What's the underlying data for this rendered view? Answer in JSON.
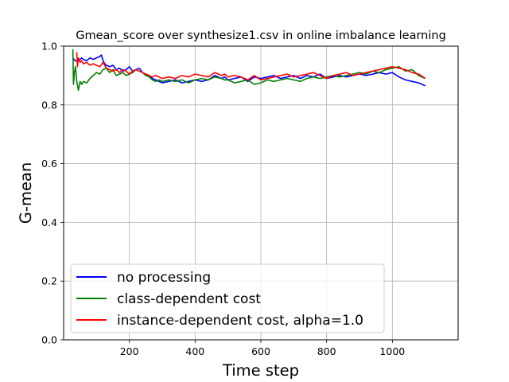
{
  "chart_data": {
    "type": "line",
    "title": "Gmean_score over synthesize1.csv in online imbalance learning",
    "xlabel": "Time step",
    "ylabel": "G-mean",
    "xlim": [
      0,
      1200
    ],
    "ylim": [
      0.0,
      1.0
    ],
    "xticks": [
      200,
      400,
      600,
      800,
      1000
    ],
    "xtick_labels": [
      "200",
      "400",
      "600",
      "800",
      "1000"
    ],
    "yticks": [
      0.0,
      0.2,
      0.4,
      0.6,
      0.8,
      1.0
    ],
    "ytick_labels": [
      "0.0",
      "0.2",
      "0.4",
      "0.6",
      "0.8",
      "1.0"
    ],
    "grid": true,
    "legend_position": "lower-left",
    "series": [
      {
        "name": "no processing",
        "color": "#0000ff",
        "x": [
          28,
          35,
          45,
          55,
          60,
          70,
          80,
          90,
          100,
          110,
          115,
          120,
          125,
          130,
          140,
          150,
          160,
          170,
          180,
          190,
          200,
          210,
          220,
          230,
          240,
          250,
          260,
          270,
          280,
          290,
          300,
          320,
          340,
          360,
          380,
          400,
          420,
          440,
          460,
          480,
          490,
          500,
          520,
          540,
          560,
          580,
          600,
          620,
          640,
          660,
          680,
          700,
          720,
          740,
          760,
          780,
          800,
          820,
          840,
          860,
          880,
          900,
          920,
          940,
          960,
          980,
          1000,
          1020,
          1040,
          1060,
          1080,
          1100
        ],
        "y": [
          0.96,
          0.95,
          0.95,
          0.96,
          0.955,
          0.95,
          0.96,
          0.955,
          0.96,
          0.965,
          0.97,
          0.95,
          0.94,
          0.935,
          0.93,
          0.935,
          0.92,
          0.925,
          0.915,
          0.92,
          0.93,
          0.915,
          0.92,
          0.925,
          0.91,
          0.905,
          0.9,
          0.89,
          0.885,
          0.88,
          0.875,
          0.88,
          0.885,
          0.875,
          0.88,
          0.885,
          0.88,
          0.885,
          0.9,
          0.89,
          0.895,
          0.885,
          0.89,
          0.895,
          0.88,
          0.895,
          0.89,
          0.895,
          0.9,
          0.89,
          0.895,
          0.9,
          0.89,
          0.9,
          0.895,
          0.905,
          0.89,
          0.895,
          0.9,
          0.895,
          0.9,
          0.905,
          0.9,
          0.905,
          0.91,
          0.905,
          0.91,
          0.895,
          0.885,
          0.88,
          0.875,
          0.865
        ]
      },
      {
        "name": "class-dependent cost",
        "color": "#008000",
        "x": [
          28,
          30,
          33,
          36,
          40,
          45,
          50,
          55,
          60,
          70,
          80,
          90,
          100,
          110,
          120,
          130,
          140,
          150,
          160,
          170,
          180,
          190,
          200,
          210,
          220,
          230,
          240,
          250,
          260,
          270,
          280,
          290,
          300,
          320,
          340,
          360,
          380,
          400,
          420,
          440,
          460,
          480,
          490,
          500,
          520,
          540,
          560,
          580,
          600,
          620,
          640,
          660,
          680,
          700,
          720,
          740,
          760,
          780,
          800,
          820,
          840,
          860,
          880,
          900,
          920,
          940,
          960,
          980,
          1000,
          1020,
          1040,
          1060,
          1080,
          1100
        ],
        "y": [
          0.99,
          0.87,
          0.91,
          0.93,
          0.88,
          0.85,
          0.88,
          0.87,
          0.88,
          0.875,
          0.89,
          0.9,
          0.91,
          0.905,
          0.92,
          0.925,
          0.91,
          0.92,
          0.9,
          0.905,
          0.91,
          0.9,
          0.905,
          0.91,
          0.92,
          0.915,
          0.91,
          0.9,
          0.895,
          0.885,
          0.88,
          0.885,
          0.88,
          0.885,
          0.88,
          0.885,
          0.875,
          0.885,
          0.89,
          0.885,
          0.895,
          0.89,
          0.885,
          0.885,
          0.875,
          0.88,
          0.885,
          0.87,
          0.875,
          0.885,
          0.88,
          0.885,
          0.89,
          0.885,
          0.88,
          0.89,
          0.895,
          0.89,
          0.895,
          0.9,
          0.895,
          0.9,
          0.905,
          0.91,
          0.905,
          0.915,
          0.91,
          0.92,
          0.925,
          0.93,
          0.915,
          0.92,
          0.9,
          0.89
        ]
      },
      {
        "name": "instance-dependent cost, alpha=1.0",
        "color": "#ff0000",
        "x": [
          40,
          42,
          45,
          50,
          55,
          60,
          70,
          80,
          90,
          100,
          110,
          120,
          130,
          140,
          150,
          160,
          170,
          180,
          190,
          200,
          210,
          220,
          230,
          240,
          250,
          260,
          270,
          280,
          290,
          300,
          320,
          340,
          360,
          380,
          400,
          420,
          440,
          460,
          480,
          490,
          500,
          520,
          540,
          560,
          580,
          600,
          620,
          640,
          660,
          680,
          700,
          720,
          740,
          760,
          780,
          800,
          820,
          840,
          860,
          880,
          900,
          920,
          940,
          960,
          980,
          1000,
          1020,
          1040,
          1060,
          1080,
          1100
        ],
        "y": [
          0.98,
          0.93,
          0.96,
          0.945,
          0.95,
          0.94,
          0.945,
          0.935,
          0.94,
          0.935,
          0.93,
          0.945,
          0.925,
          0.92,
          0.915,
          0.92,
          0.91,
          0.92,
          0.915,
          0.905,
          0.915,
          0.92,
          0.915,
          0.91,
          0.905,
          0.9,
          0.895,
          0.9,
          0.895,
          0.89,
          0.895,
          0.89,
          0.9,
          0.895,
          0.905,
          0.9,
          0.895,
          0.91,
          0.9,
          0.905,
          0.895,
          0.9,
          0.895,
          0.885,
          0.9,
          0.885,
          0.89,
          0.895,
          0.9,
          0.905,
          0.895,
          0.9,
          0.905,
          0.91,
          0.9,
          0.89,
          0.9,
          0.905,
          0.91,
          0.9,
          0.905,
          0.91,
          0.915,
          0.92,
          0.925,
          0.93,
          0.925,
          0.92,
          0.91,
          0.905,
          0.89
        ]
      }
    ]
  }
}
